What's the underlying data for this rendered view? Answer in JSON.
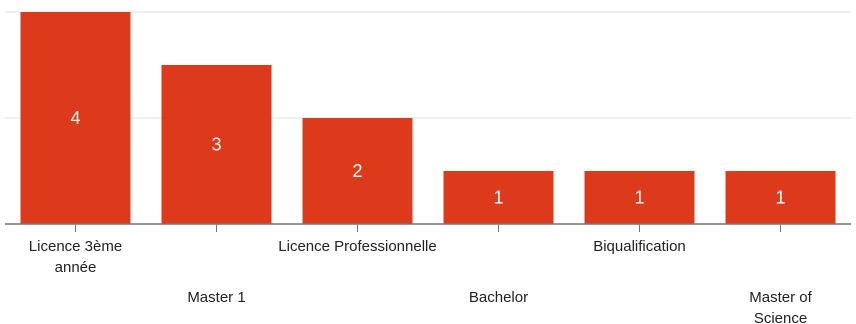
{
  "chart_data": {
    "type": "bar",
    "categories": [
      [
        "Licence 3ème",
        "année"
      ],
      [
        "Master 1"
      ],
      [
        "Licence Professionnelle"
      ],
      [
        "Bachelor"
      ],
      [
        "Biqualification"
      ],
      [
        "Master of",
        "Science"
      ]
    ],
    "values": [
      4,
      3,
      2,
      1,
      1,
      1
    ],
    "data_labels": [
      "4",
      "3",
      "2",
      "1",
      "1",
      "1"
    ],
    "ylim": [
      0,
      4
    ],
    "gridlines": [
      0,
      2,
      4
    ],
    "grid": true,
    "legend": "none",
    "bar_color": "#dc3a1a"
  }
}
